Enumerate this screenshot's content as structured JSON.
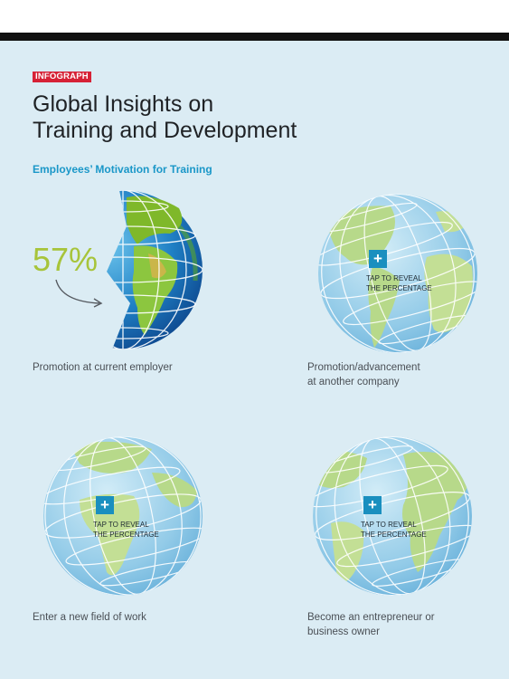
{
  "header": {
    "tag": "INFOGRAPH"
  },
  "title_line1": "Global Insights on",
  "title_line2": "Training and Development",
  "subtitle": "Employees’ Motivation for Training",
  "items": [
    {
      "caption_line1": "Promotion at current employer",
      "caption_line2": "",
      "percentage": "57%"
    },
    {
      "caption_line1": "Promotion/advancement",
      "caption_line2": "at another company",
      "reveal_line1": "TAP TO REVEAL",
      "reveal_line2": "THE PERCENTAGE",
      "reveal_icon": "+"
    },
    {
      "caption_line1": "Enter a new field of work",
      "caption_line2": "",
      "reveal_line1": "TAP TO REVEAL",
      "reveal_line2": "THE PERCENTAGE",
      "reveal_icon": "+"
    },
    {
      "caption_line1": "Become an entrepreneur or",
      "caption_line2": "business owner",
      "reveal_line1": "TAP TO REVEAL",
      "reveal_line2": "THE PERCENTAGE",
      "reveal_icon": "+"
    }
  ],
  "colors": {
    "accent": "#1a97c8",
    "tag": "#d62236",
    "percentage": "#a7c43a",
    "background": "#dbecf4"
  }
}
